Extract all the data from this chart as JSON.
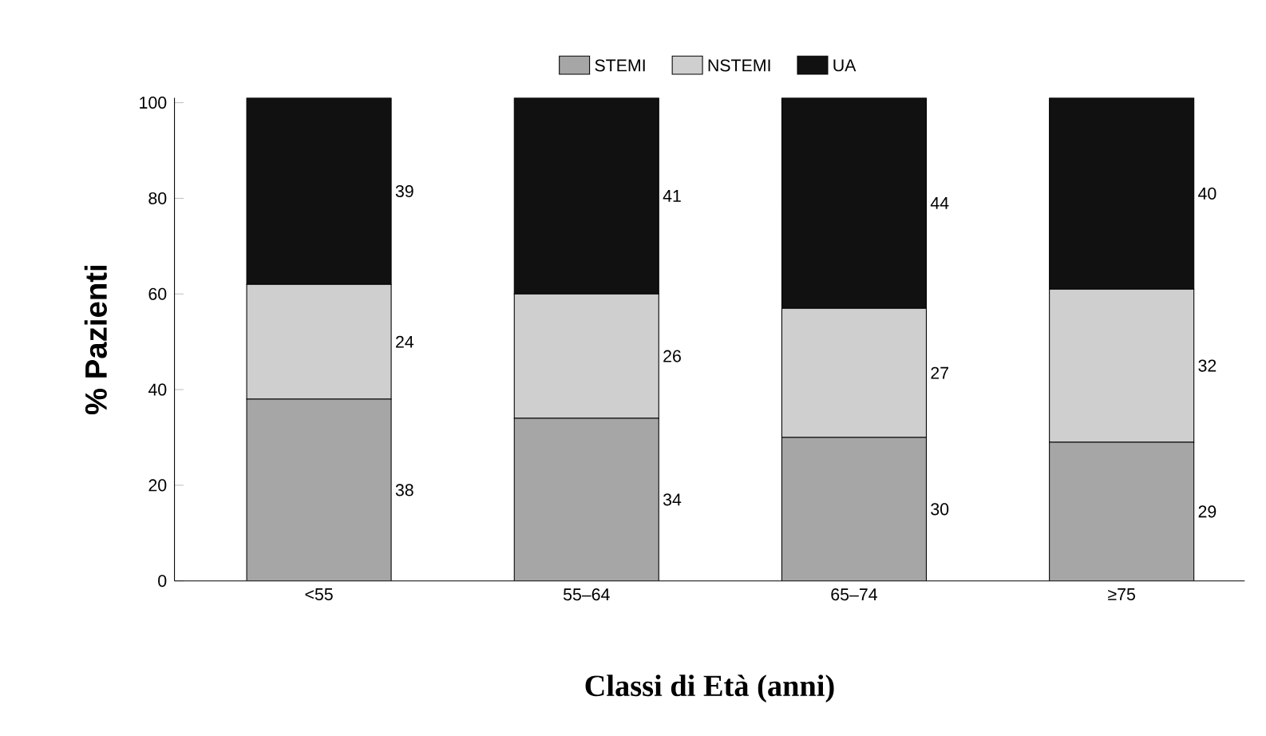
{
  "chart_data": {
    "type": "bar",
    "stacked": true,
    "xlabel": "Classi di Età (anni)",
    "ylabel": "% Pazienti",
    "categories": [
      "<55",
      "55–64",
      "65–74",
      "≥75"
    ],
    "series": [
      {
        "name": "STEMI",
        "color": "#a6a6a6",
        "values": [
          38,
          34,
          30,
          29
        ]
      },
      {
        "name": "NSTEMI",
        "color": "#cfcfcf",
        "values": [
          24,
          26,
          27,
          32
        ]
      },
      {
        "name": "UA",
        "color": "#111111",
        "values": [
          39,
          41,
          44,
          40
        ]
      }
    ],
    "ylim": [
      0,
      101
    ],
    "yticks": [
      0,
      20,
      40,
      60,
      80,
      100
    ],
    "data_labels": true,
    "legend": "top",
    "grid": false
  }
}
